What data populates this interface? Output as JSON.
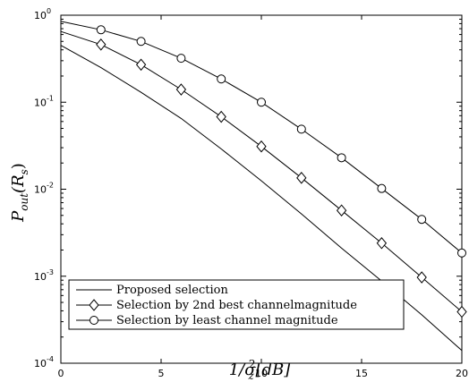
{
  "chart_data": {
    "type": "line",
    "title": "",
    "xlabel_parts": [
      "1/σ",
      "z",
      "2",
      "[dB]"
    ],
    "ylabel_parts": [
      "P",
      "out",
      "(R",
      "s",
      ")"
    ],
    "xlim": [
      0,
      20
    ],
    "ylim": [
      0.0001,
      1
    ],
    "yscale": "log",
    "grid": false,
    "legend_position": "bottom-left",
    "x_ticks": [
      "0",
      "5",
      "10",
      "15",
      "20"
    ],
    "y_ticks": [
      {
        "base": "10",
        "exp": "0"
      },
      {
        "base": "10",
        "exp": "-1"
      },
      {
        "base": "10",
        "exp": "-2"
      },
      {
        "base": "10",
        "exp": "-3"
      },
      {
        "base": "10",
        "exp": "-4"
      }
    ],
    "series": [
      {
        "name": "Proposed selection",
        "marker": "none",
        "x": [
          0,
          2,
          4,
          6,
          8,
          10,
          12,
          14,
          16,
          18,
          20
        ],
        "values": [
          0.45,
          0.25,
          0.13,
          0.065,
          0.029,
          0.0125,
          0.0052,
          0.0021,
          0.00088,
          0.00036,
          0.00014
        ]
      },
      {
        "name": "Selection by 2nd best channelmagnitude",
        "marker": "diamond",
        "x": [
          0,
          2,
          4,
          6,
          8,
          10,
          12,
          14,
          16,
          18,
          20
        ],
        "values": [
          0.65,
          0.46,
          0.27,
          0.14,
          0.068,
          0.031,
          0.0135,
          0.0057,
          0.0024,
          0.00097,
          0.00039
        ]
      },
      {
        "name": "Selection by least channel magnitude",
        "marker": "circle",
        "x": [
          0,
          2,
          4,
          6,
          8,
          10,
          12,
          14,
          16,
          18,
          20
        ],
        "values": [
          0.85,
          0.68,
          0.5,
          0.32,
          0.185,
          0.1,
          0.049,
          0.023,
          0.0102,
          0.0045,
          0.00185
        ]
      }
    ]
  }
}
